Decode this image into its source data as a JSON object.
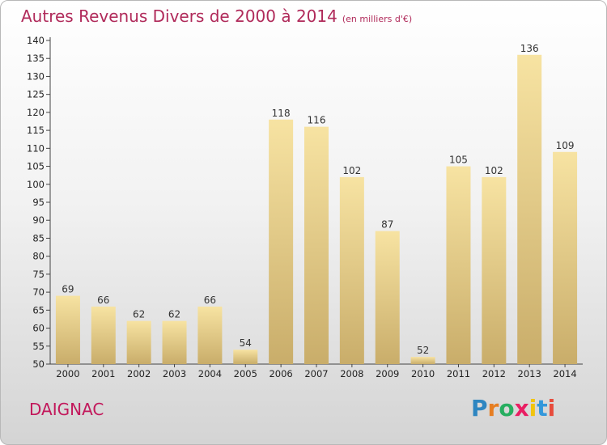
{
  "title": "Autres Revenus Divers de 2000 à 2014",
  "unit": "(en milliers d'€)",
  "commune": "DAIGNAC",
  "logo": {
    "text": "Proxiti",
    "colors": [
      "#2e86c1",
      "#e67e22",
      "#27ae60",
      "#e91e63",
      "#f1c40f",
      "#3498db",
      "#e74c3c"
    ]
  },
  "colors": {
    "title": "#b02a5a",
    "bar_light": "#f7e3a2",
    "bar_dark": "#c9ad6a",
    "axis": "#444444"
  },
  "chart_data": {
    "type": "bar",
    "categories": [
      "2000",
      "2001",
      "2002",
      "2003",
      "2004",
      "2005",
      "2006",
      "2007",
      "2008",
      "2009",
      "2010",
      "2011",
      "2012",
      "2013",
      "2014"
    ],
    "values": [
      69,
      66,
      62,
      62,
      66,
      54,
      118,
      116,
      102,
      87,
      52,
      105,
      102,
      136,
      109
    ],
    "ylim": [
      50,
      140
    ],
    "yticks": [
      50,
      55,
      60,
      65,
      70,
      75,
      80,
      85,
      90,
      95,
      100,
      105,
      110,
      115,
      120,
      125,
      130,
      135,
      140
    ],
    "grid": false,
    "data_labels": true
  }
}
